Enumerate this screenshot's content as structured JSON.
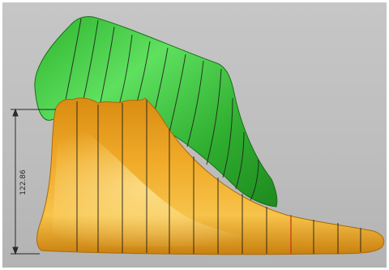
{
  "viewport": {
    "background": "#c0c0c0"
  },
  "dimension": {
    "value": "122.86"
  },
  "colors": {
    "last_green": "#3cc83c",
    "foot_orange": "#e8a020",
    "section_line": "#1e1e1e",
    "section_line_red": "#c83214",
    "dimension_line": "#2a2a2a"
  }
}
